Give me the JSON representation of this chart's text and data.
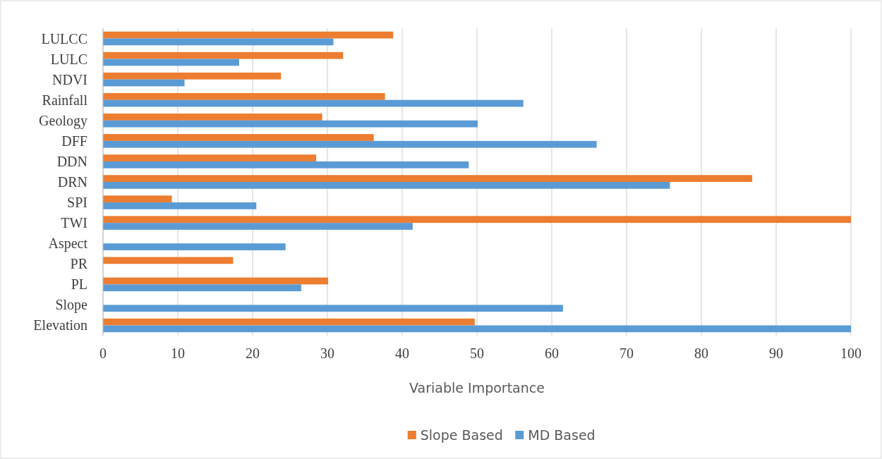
{
  "chart_data": {
    "type": "bar",
    "orientation": "horizontal",
    "xlabel": "Variable Importance",
    "categories": [
      "LULCC",
      "LULC",
      "NDVI",
      "Rainfall",
      "Geology",
      "DFF",
      "DDN",
      "DRN",
      "SPI",
      "TWI",
      "Aspect",
      "PR",
      "PL",
      "Slope",
      "Elevation"
    ],
    "series": [
      {
        "name": "Slope Based",
        "color": "#ed7d31",
        "values": [
          38.8,
          32.1,
          23.8,
          37.7,
          29.3,
          36.2,
          28.5,
          86.8,
          9.2,
          100,
          0,
          17.4,
          30.1,
          0,
          49.7
        ]
      },
      {
        "name": "MD Based",
        "color": "#5b9bd5",
        "values": [
          30.8,
          18.2,
          10.9,
          56.2,
          50.1,
          66.0,
          48.9,
          75.8,
          20.5,
          41.4,
          24.4,
          0,
          26.5,
          61.5,
          100
        ]
      }
    ],
    "xlim": [
      0,
      100
    ],
    "xticks": [
      0,
      10,
      20,
      30,
      40,
      50,
      60,
      70,
      80,
      90,
      100
    ],
    "grid": "x",
    "legend": "bottom"
  }
}
